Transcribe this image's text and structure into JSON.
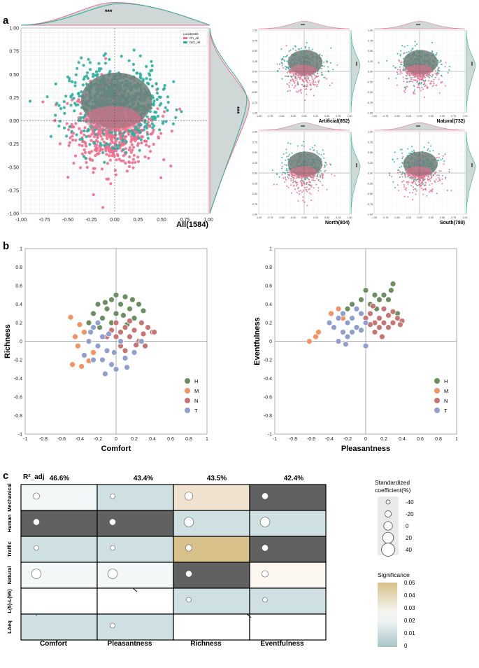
{
  "panels": {
    "a": "a",
    "b": "b",
    "c": "c"
  },
  "colors": {
    "ch": "#f06d8c",
    "iso": "#2ab0a0",
    "overlap": "#6f7f7a",
    "H": "#6b8f5e",
    "M": "#f4935f",
    "N": "#c97373",
    "T": "#8e9fd0",
    "cell_dark": "#616161",
    "cell_blue": "#cfe0e2",
    "cell_light": "#f2f7f7",
    "cell_white": "#ffffff",
    "cell_tan": "#d8c08a",
    "cell_tan_light": "#efe3cf",
    "cell_cream": "#fcf6f0"
  },
  "panel_a": {
    "main": {
      "label": "All(1584)",
      "legend_title": "LocationID",
      "legend_entries": [
        "Ch_All",
        "ISO_All"
      ],
      "x_ticks": [
        "-1.00",
        "-0.75",
        "-0.50",
        "-0.25",
        "0.00",
        "0.25",
        "0.50",
        "0.75",
        "1.00"
      ],
      "y_ticks": [
        "1.00",
        "0.75",
        "0.50",
        "0.25",
        "0.00",
        "-0.25",
        "-0.50",
        "-0.75",
        "-1.00"
      ],
      "sig_top": "***",
      "sig_right": "***"
    },
    "small": [
      {
        "label": "Artificial(852)",
        "sig": "***"
      },
      {
        "label": "Natural(732)",
        "sig": "***"
      },
      {
        "label": "North(804)",
        "sig": "***"
      },
      {
        "label": "South(780)",
        "sig": "***"
      }
    ],
    "small_ticks_x": [
      "-1.00",
      "-0.75",
      "-0.50",
      "-0.25",
      "0.00",
      "0.25",
      "0.50",
      "0.75",
      "1.00"
    ],
    "small_ticks_y": [
      "1.00",
      "0.75",
      "0.50",
      "0.25",
      "0.00",
      "-0.25",
      "-0.50",
      "-0.75",
      "-1.00"
    ]
  },
  "panel_b": {
    "x_ticks": [
      "-1",
      "-0.8",
      "-0.6",
      "-0.4",
      "-0.2",
      "0",
      "0.2",
      "0.4",
      "0.6",
      "0.8",
      "1"
    ],
    "y_ticks": [
      "1",
      "0.8",
      "0.6",
      "0.4",
      "0.2",
      "0",
      "-0.2",
      "-0.4",
      "-0.6",
      "-0.8",
      "-1"
    ],
    "legend": [
      "H",
      "M",
      "N",
      "T"
    ]
  },
  "chart_data": [
    {
      "type": "scatter",
      "title": "",
      "xlabel": "Comfort",
      "ylabel": "Richness",
      "xlim": [
        -1,
        1
      ],
      "ylim": [
        -1,
        1
      ],
      "series": [
        {
          "name": "H",
          "points": [
            [
              -0.25,
              0.3
            ],
            [
              -0.2,
              0.4
            ],
            [
              -0.15,
              0.25
            ],
            [
              -0.1,
              0.35
            ],
            [
              -0.05,
              0.45
            ],
            [
              0.0,
              0.3
            ],
            [
              0.05,
              0.4
            ],
            [
              0.1,
              0.48
            ],
            [
              0.15,
              0.35
            ],
            [
              0.2,
              0.25
            ],
            [
              0.25,
              0.4
            ],
            [
              0.3,
              0.33
            ],
            [
              0.0,
              0.5
            ],
            [
              -0.3,
              0.2
            ],
            [
              -0.05,
              0.2
            ],
            [
              0.08,
              0.28
            ],
            [
              -0.18,
              0.15
            ],
            [
              0.12,
              0.18
            ],
            [
              0.18,
              0.45
            ],
            [
              -0.12,
              0.42
            ]
          ]
        },
        {
          "name": "M",
          "points": [
            [
              -0.35,
              0.1
            ],
            [
              -0.4,
              0.18
            ],
            [
              -0.45,
              0.05
            ],
            [
              -0.5,
              0.26
            ],
            [
              -0.48,
              -0.25
            ],
            [
              -0.38,
              -0.27
            ],
            [
              -0.3,
              -0.21
            ],
            [
              -0.25,
              -0.12
            ],
            [
              -0.42,
              -0.05
            ]
          ]
        },
        {
          "name": "N",
          "points": [
            [
              0.0,
              0.2
            ],
            [
              0.05,
              0.1
            ],
            [
              0.1,
              0.15
            ],
            [
              0.15,
              0.05
            ],
            [
              0.2,
              0.12
            ],
            [
              0.25,
              0.0
            ],
            [
              0.3,
              0.08
            ],
            [
              0.35,
              0.15
            ],
            [
              0.4,
              0.1
            ],
            [
              0.05,
              -0.05
            ],
            [
              0.1,
              -0.1
            ],
            [
              -0.05,
              0.12
            ],
            [
              0.15,
              0.22
            ],
            [
              0.22,
              -0.04
            ],
            [
              0.28,
              0.2
            ],
            [
              0.0,
              0.05
            ],
            [
              -0.1,
              0.05
            ],
            [
              0.32,
              -0.05
            ],
            [
              0.42,
              0.1
            ]
          ]
        },
        {
          "name": "T",
          "points": [
            [
              -0.3,
              0.0
            ],
            [
              -0.25,
              0.15
            ],
            [
              -0.2,
              0.2
            ],
            [
              -0.15,
              -0.2
            ],
            [
              -0.1,
              -0.1
            ],
            [
              -0.05,
              -0.25
            ],
            [
              0.0,
              -0.3
            ],
            [
              -0.12,
              -0.35
            ],
            [
              0.12,
              -0.28
            ],
            [
              -0.2,
              -0.05
            ],
            [
              -0.35,
              -0.15
            ],
            [
              -0.15,
              0.05
            ],
            [
              -0.25,
              -0.2
            ],
            [
              0.05,
              0.0
            ],
            [
              -0.08,
              0.08
            ],
            [
              0.1,
              -0.18
            ],
            [
              0.28,
              0.0
            ],
            [
              0.2,
              -0.12
            ],
            [
              -0.28,
              0.1
            ],
            [
              -0.02,
              -0.12
            ]
          ]
        }
      ]
    },
    {
      "type": "scatter",
      "title": "",
      "xlabel": "Pleasantness",
      "ylabel": "Eventfulness",
      "xlim": [
        -1,
        1
      ],
      "ylim": [
        -1,
        1
      ],
      "series": [
        {
          "name": "H",
          "points": [
            [
              -0.05,
              0.45
            ],
            [
              0.0,
              0.55
            ],
            [
              0.05,
              0.4
            ],
            [
              0.1,
              0.5
            ],
            [
              0.15,
              0.45
            ],
            [
              0.2,
              0.5
            ],
            [
              0.25,
              0.45
            ],
            [
              0.3,
              0.62
            ],
            [
              0.28,
              0.55
            ],
            [
              -0.15,
              0.4
            ],
            [
              -0.2,
              0.35
            ],
            [
              0.35,
              0.3
            ],
            [
              0.12,
              0.35
            ]
          ]
        },
        {
          "name": "M",
          "points": [
            [
              -0.62,
              0.0
            ],
            [
              -0.55,
              0.05
            ],
            [
              -0.52,
              0.1
            ],
            [
              -0.38,
              0.3
            ],
            [
              -0.3,
              0.35
            ],
            [
              -0.25,
              0.25
            ]
          ]
        },
        {
          "name": "N",
          "points": [
            [
              0.0,
              0.25
            ],
            [
              0.05,
              0.3
            ],
            [
              0.1,
              0.2
            ],
            [
              0.15,
              0.25
            ],
            [
              0.2,
              0.2
            ],
            [
              0.25,
              0.28
            ],
            [
              0.3,
              0.2
            ],
            [
              0.35,
              0.25
            ],
            [
              0.4,
              0.22
            ],
            [
              0.1,
              0.1
            ],
            [
              0.15,
              0.15
            ],
            [
              0.2,
              0.35
            ],
            [
              0.25,
              0.15
            ],
            [
              0.05,
              0.18
            ],
            [
              0.3,
              0.32
            ],
            [
              0.38,
              0.18
            ],
            [
              0.18,
              0.05
            ],
            [
              0.08,
              0.38
            ]
          ]
        },
        {
          "name": "T",
          "points": [
            [
              -0.3,
              0.0
            ],
            [
              -0.25,
              0.1
            ],
            [
              -0.2,
              0.2
            ],
            [
              -0.15,
              0.25
            ],
            [
              -0.1,
              0.15
            ],
            [
              -0.05,
              0.3
            ],
            [
              0.0,
              0.2
            ],
            [
              -0.25,
              0.3
            ],
            [
              -0.35,
              0.15
            ],
            [
              -0.2,
              0.05
            ],
            [
              0.0,
              -0.05
            ],
            [
              -0.15,
              0.1
            ],
            [
              -0.05,
              0.12
            ],
            [
              -0.3,
              0.25
            ],
            [
              -0.1,
              0.35
            ],
            [
              -0.4,
              0.2
            ],
            [
              -0.22,
              -0.03
            ]
          ]
        }
      ]
    },
    {
      "type": "table",
      "title": "",
      "header_label": "R²_adj",
      "columns": [
        "Comfort",
        "Pleasantness",
        "Richness",
        "Eventfulness"
      ],
      "r2_adj": [
        "46.6%",
        "43.4%",
        "43.5%",
        "42.4%"
      ],
      "rows": [
        "Mechanical",
        "Human",
        "Traffic",
        "Natural",
        "L(5)-L(95)",
        "LAeq"
      ],
      "cells": [
        [
          {
            "fill": "cell_light",
            "coef": -20
          },
          {
            "fill": "cell_blue",
            "coef": -40
          },
          {
            "fill": "cell_tan_light",
            "coef": 0
          },
          {
            "fill": "cell_dark",
            "coef": -20
          }
        ],
        [
          {
            "fill": "cell_dark",
            "coef": -20
          },
          {
            "fill": "cell_dark",
            "coef": -20
          },
          {
            "fill": "cell_blue",
            "coef": 20
          },
          {
            "fill": "cell_blue",
            "coef": 20
          }
        ],
        [
          {
            "fill": "cell_blue",
            "coef": -40
          },
          {
            "fill": "cell_blue",
            "coef": -40
          },
          {
            "fill": "cell_tan",
            "coef": -20
          },
          {
            "fill": "cell_dark",
            "coef": -20
          }
        ],
        [
          {
            "fill": "cell_light",
            "coef": 20
          },
          {
            "fill": "cell_light",
            "coef": 20
          },
          {
            "fill": "cell_dark",
            "coef": -20
          },
          {
            "fill": "cell_cream",
            "coef": -20
          }
        ],
        [
          {
            "fill": "cell_white",
            "coef": null
          },
          {
            "fill": "cell_white",
            "coef": null
          },
          {
            "fill": "cell_blue",
            "coef": -40
          },
          {
            "fill": "cell_blue",
            "coef": -40
          }
        ],
        [
          {
            "fill": "cell_blue",
            "coef": null
          },
          {
            "fill": "cell_blue",
            "coef": -40
          },
          {
            "fill": "cell_white",
            "coef": null
          },
          {
            "fill": "cell_white",
            "coef": null
          }
        ]
      ],
      "size_legend_title": "Standardized coefficient(%)",
      "size_legend": [
        -40,
        -20,
        0,
        20,
        40
      ],
      "significance_title": "Significance",
      "significance_ticks": [
        "0.05",
        "0.04",
        "0.03",
        "0.02",
        "0.01",
        "0"
      ]
    }
  ]
}
